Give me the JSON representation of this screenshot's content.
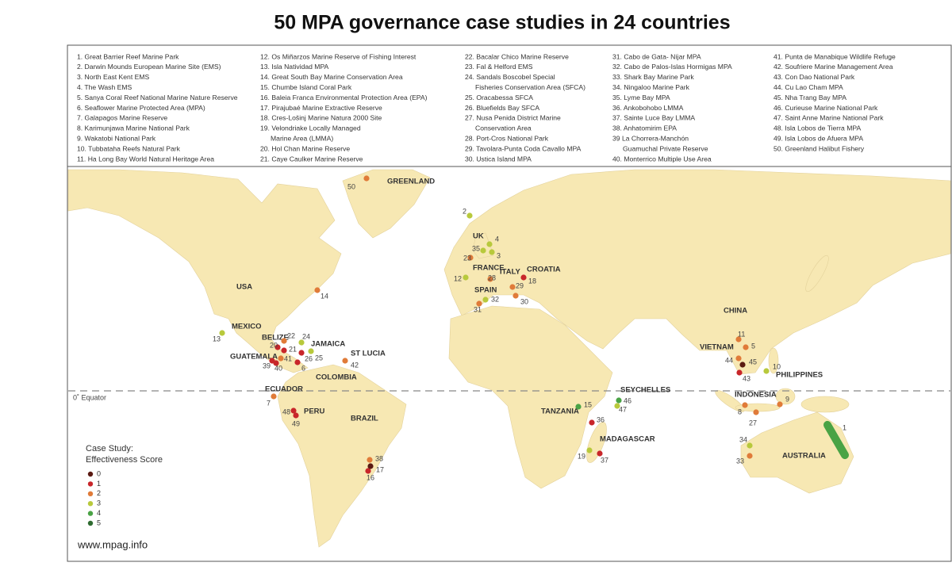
{
  "title": "50 MPA governance case studies in 24 countries",
  "case_list": {
    "columns": [
      [
        "1. Great Barrier Reef Marine Park",
        "2. Darwin Mounds European Marine Site (EMS)",
        "3. North East Kent EMS",
        "4. The Wash EMS",
        "5. Sanya Coral Reef National Marine Nature Reserve",
        "6. Seaflower Marine Protected Area (MPA)",
        "7. Galapagos Marine Reserve",
        "8. Karimunjawa Marine National Park",
        "9. Wakatobi National Park",
        "10. Tubbataha Reefs Natural Park",
        "11. Ha Long Bay World Natural Heritage Area"
      ],
      [
        "12. Os Miñarzos Marine Reserve of Fishing Interest",
        "13. Isla Natividad MPA",
        "14. Great South Bay Marine Conservation Area",
        "15. Chumbe Island Coral Park",
        "16. Baleia Franca Environmental Protection Area (EPA)",
        "17. Pirajubaé Marine Extractive Reserve",
        "18. Cres-Lošinj Marine Natura 2000 Site",
        "19. Velondriake Locally Managed",
        "Marine Area (LMMA)",
        "20. Hol Chan Marine Reserve",
        "21. Caye Caulker Marine Reserve"
      ],
      [
        "22. Bacalar Chico Marine Reserve",
        "23. Fal & Helford EMS",
        "24. Sandals Boscobel Special",
        "Fisheries Conservation Area  (SFCA)",
        "25. Oracabessa SFCA",
        "26. Bluefields Bay SFCA",
        "27. Nusa Penida District Marine",
        "Conservation Area",
        "28. Port-Cros National Park",
        "29. Tavolara-Punta Coda Cavallo MPA",
        "30. Ustica Island MPA"
      ],
      [
        "31. Cabo de Gata- Níjar MPA",
        "32. Cabo de Palos-Islas Hormigas MPA",
        "33. Shark Bay Marine Park",
        "34. Ningaloo Marine Park",
        "35. Lyme Bay MPA",
        "36. Ankobohobo LMMA",
        "37. Sainte Luce Bay LMMA",
        "38. Anhatomirim EPA",
        "39 La Chorrera-Manchón",
        "Guamuchal Private Reserve",
        "40. Monterrico Multiple Use Area"
      ],
      [
        "41. Punta de Manabique Wildlife Refuge",
        "42. Soufriere Marine Management Area",
        "43. Con Dao National Park",
        "44. Cu Lao Cham MPA",
        "45. Nha Trang Bay MPA",
        "46. Curieuse Marine National Park",
        "47. Saint Anne Marine National Park",
        "48. Isla Lobos de Tierra MPA",
        "49. Isla Lobos de Afuera MPA",
        "50. Greenland Halibut Fishery"
      ]
    ]
  },
  "map": {
    "countries": [
      "GREENLAND",
      "UK",
      "FRANCE",
      "ITALY",
      "CROATIA",
      "SPAIN",
      "USA",
      "MEXICO",
      "BELIZE",
      "JAMAICA",
      "GUATEMALA",
      "ST LUCIA",
      "COLOMBIA",
      "ECUADOR",
      "PERU",
      "BRAZIL",
      "TANZANIA",
      "SEYCHELLES",
      "MADAGASCAR",
      "CHINA",
      "VIETNAM",
      "PHILIPPINES",
      "INDONESIA",
      "AUSTRALIA"
    ],
    "equator": "0˚ Equator",
    "sites": [
      {
        "label": "1",
        "score": 4
      },
      {
        "label": "2",
        "score": 3
      },
      {
        "label": "3",
        "score": 3
      },
      {
        "label": "4",
        "score": 3
      },
      {
        "label": "5",
        "score": 2
      },
      {
        "label": "6",
        "score": 1
      },
      {
        "label": "7",
        "score": 2
      },
      {
        "label": "8",
        "score": 2
      },
      {
        "label": "9",
        "score": 2
      },
      {
        "label": "10",
        "score": 3
      },
      {
        "label": "11",
        "score": 2
      },
      {
        "label": "12",
        "score": 3
      },
      {
        "label": "13",
        "score": 3
      },
      {
        "label": "14",
        "score": 2
      },
      {
        "label": "15",
        "score": 4
      },
      {
        "label": "16",
        "score": 1
      },
      {
        "label": "17",
        "score": 0
      },
      {
        "label": "18",
        "score": 1
      },
      {
        "label": "19",
        "score": 3
      },
      {
        "label": "20",
        "score": 1
      },
      {
        "label": "21",
        "score": 1
      },
      {
        "label": "22",
        "score": 2
      },
      {
        "label": "23",
        "score": 2
      },
      {
        "label": "24",
        "score": 3
      },
      {
        "label": "25",
        "score": 3
      },
      {
        "label": "26",
        "score": 1
      },
      {
        "label": "27",
        "score": 2
      },
      {
        "label": "28",
        "score": 2
      },
      {
        "label": "29",
        "score": 2
      },
      {
        "label": "30",
        "score": 2
      },
      {
        "label": "31",
        "score": 2
      },
      {
        "label": "32",
        "score": 3
      },
      {
        "label": "33",
        "score": 2
      },
      {
        "label": "34",
        "score": 3
      },
      {
        "label": "35",
        "score": 3
      },
      {
        "label": "36",
        "score": 1
      },
      {
        "label": "37",
        "score": 1
      },
      {
        "label": "38",
        "score": 2
      },
      {
        "label": "39",
        "score": 1
      },
      {
        "label": "40",
        "score": 1
      },
      {
        "label": "41",
        "score": 2
      },
      {
        "label": "42",
        "score": 2
      },
      {
        "label": "43",
        "score": 1
      },
      {
        "label": "44",
        "score": 2
      },
      {
        "label": "45",
        "score": 0
      },
      {
        "label": "46",
        "score": 4
      },
      {
        "label": "47",
        "score": 3
      },
      {
        "label": "48",
        "score": 1
      },
      {
        "label": "49",
        "score": 1
      },
      {
        "label": "50",
        "score": 2
      }
    ],
    "legend": {
      "title": [
        "Case Study:",
        "Effectiveness Score"
      ],
      "scores": [
        0,
        1,
        2,
        3,
        4,
        5
      ],
      "colors": [
        "#5a1a12",
        "#c8262a",
        "#e07b39",
        "#b8c93c",
        "#4aa345",
        "#2e6b30"
      ]
    },
    "credit": "www.mpag.info"
  }
}
